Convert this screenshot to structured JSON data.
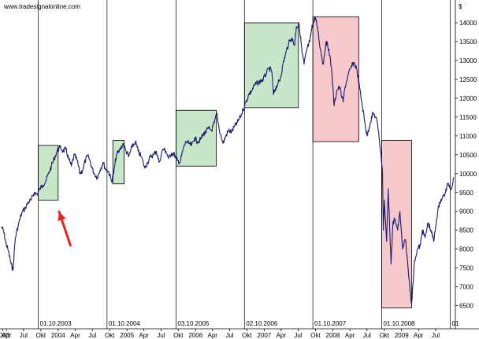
{
  "source_label": "www.tradesignalonline.com",
  "chart_data": {
    "type": "line",
    "title": "",
    "xlabel": "",
    "ylabel": "",
    "y_unit_label": "$",
    "ylim": [
      6200,
      14250
    ],
    "xlim": [
      "2003-03-20",
      "2009-10-28"
    ],
    "y_ticks": [
      6500,
      7000,
      7500,
      8000,
      8500,
      9000,
      9500,
      10000,
      10500,
      11000,
      11500,
      12000,
      12500,
      13000,
      13500,
      14000
    ],
    "x_ticks": [
      {
        "date": "2003-03-25",
        "label": "2003"
      },
      {
        "date": "2003-04-15",
        "label": "Apr"
      },
      {
        "date": "2003-07-15",
        "label": "Jul"
      },
      {
        "date": "2003-10-15",
        "label": "Okt"
      },
      {
        "date": "2004-01-15",
        "label": "2004"
      },
      {
        "date": "2004-04-15",
        "label": "Apr"
      },
      {
        "date": "2004-07-15",
        "label": "Jul"
      },
      {
        "date": "2004-10-15",
        "label": "Okt"
      },
      {
        "date": "2005-01-15",
        "label": "2005"
      },
      {
        "date": "2005-04-15",
        "label": "Apr"
      },
      {
        "date": "2005-07-15",
        "label": "Jul"
      },
      {
        "date": "2005-10-15",
        "label": "Okt"
      },
      {
        "date": "2006-01-15",
        "label": "2006"
      },
      {
        "date": "2006-04-15",
        "label": "Apr"
      },
      {
        "date": "2006-07-15",
        "label": "Jul"
      },
      {
        "date": "2006-10-15",
        "label": "Okt"
      },
      {
        "date": "2007-01-15",
        "label": "2007"
      },
      {
        "date": "2007-04-15",
        "label": "Apr"
      },
      {
        "date": "2007-07-15",
        "label": "Jul"
      },
      {
        "date": "2007-10-15",
        "label": "Okt"
      },
      {
        "date": "2008-01-15",
        "label": "2008"
      },
      {
        "date": "2008-04-15",
        "label": "Apr"
      },
      {
        "date": "2008-07-15",
        "label": "Jul"
      },
      {
        "date": "2008-10-15",
        "label": "Okt"
      },
      {
        "date": "2009-01-15",
        "label": "2009"
      },
      {
        "date": "2009-04-15",
        "label": "Apr"
      },
      {
        "date": "2009-07-15",
        "label": "Jul"
      }
    ],
    "vertical_markers": [
      {
        "date": "2003-10-01",
        "label": "01.10.2003"
      },
      {
        "date": "2004-10-01",
        "label": "01.10.2004"
      },
      {
        "date": "2005-10-03",
        "label": "03.10.2005"
      },
      {
        "date": "2006-10-02",
        "label": "02.10.2006"
      },
      {
        "date": "2007-10-01",
        "label": "01.10.2007"
      },
      {
        "date": "2008-10-01",
        "label": "01.10.2008"
      },
      {
        "date": "2009-10-01",
        "label": "01"
      }
    ],
    "highlight_boxes": [
      {
        "start": "2003-10-01",
        "end": "2004-01-15",
        "low": 9300,
        "high": 10750,
        "kind": "gain",
        "color": "#c8e6c8"
      },
      {
        "start": "2004-11-01",
        "end": "2004-12-31",
        "low": 9730,
        "high": 10880,
        "kind": "gain",
        "color": "#c8e6c8"
      },
      {
        "start": "2005-10-03",
        "end": "2006-05-05",
        "low": 10200,
        "high": 11680,
        "kind": "gain",
        "color": "#c8e6c8"
      },
      {
        "start": "2006-10-02",
        "end": "2007-07-16",
        "low": 11750,
        "high": 14000,
        "kind": "gain",
        "color": "#c8e6c8"
      },
      {
        "start": "2007-10-01",
        "end": "2008-06-01",
        "low": 10850,
        "high": 14160,
        "kind": "loss",
        "color": "#f7c8cc"
      },
      {
        "start": "2008-10-01",
        "end": "2009-03-09",
        "low": 6440,
        "high": 10880,
        "kind": "loss",
        "color": "#f7c8cc"
      }
    ],
    "annotation": {
      "type": "arrow",
      "color": "#e8231f",
      "from": {
        "date": "2004-03-20",
        "value": 8100
      },
      "to": {
        "date": "2004-01-20",
        "value": 8990
      }
    },
    "grid": false,
    "series": [
      {
        "color": "#1a1a6e",
        "points": [
          [
            "2003-03-20",
            8600
          ],
          [
            "2003-04-01",
            8450
          ],
          [
            "2003-04-10",
            8200
          ],
          [
            "2003-04-25",
            7950
          ],
          [
            "2003-05-10",
            7600
          ],
          [
            "2003-05-20",
            7450
          ],
          [
            "2003-06-01",
            8300
          ],
          [
            "2003-06-20",
            8700
          ],
          [
            "2003-07-05",
            8950
          ],
          [
            "2003-07-25",
            9100
          ],
          [
            "2003-08-10",
            9250
          ],
          [
            "2003-08-25",
            9300
          ],
          [
            "2003-09-10",
            9500
          ],
          [
            "2003-09-25",
            9450
          ],
          [
            "2003-10-10",
            9600
          ],
          [
            "2003-10-25",
            9700
          ],
          [
            "2003-11-10",
            9800
          ],
          [
            "2003-11-25",
            10000
          ],
          [
            "2003-12-10",
            10200
          ],
          [
            "2003-12-25",
            10400
          ],
          [
            "2004-01-10",
            10600
          ],
          [
            "2004-01-25",
            10700
          ],
          [
            "2004-02-10",
            10600
          ],
          [
            "2004-02-25",
            10650
          ],
          [
            "2004-03-10",
            10400
          ],
          [
            "2004-03-25",
            10200
          ],
          [
            "2004-04-10",
            10500
          ],
          [
            "2004-04-25",
            10350
          ],
          [
            "2004-05-10",
            10000
          ],
          [
            "2004-05-25",
            10100
          ],
          [
            "2004-06-10",
            10400
          ],
          [
            "2004-06-25",
            10450
          ],
          [
            "2004-07-10",
            10200
          ],
          [
            "2004-07-25",
            10000
          ],
          [
            "2004-08-10",
            9900
          ],
          [
            "2004-08-25",
            10100
          ],
          [
            "2004-09-10",
            10300
          ],
          [
            "2004-09-25",
            10100
          ],
          [
            "2004-10-10",
            10050
          ],
          [
            "2004-10-25",
            9800
          ],
          [
            "2004-11-05",
            10000
          ],
          [
            "2004-11-20",
            10500
          ],
          [
            "2004-12-05",
            10600
          ],
          [
            "2004-12-25",
            10800
          ],
          [
            "2005-01-10",
            10600
          ],
          [
            "2005-01-25",
            10450
          ],
          [
            "2005-02-10",
            10700
          ],
          [
            "2005-03-01",
            10850
          ],
          [
            "2005-03-15",
            10600
          ],
          [
            "2005-04-01",
            10450
          ],
          [
            "2005-04-20",
            10150
          ],
          [
            "2005-05-05",
            10300
          ],
          [
            "2005-05-20",
            10450
          ],
          [
            "2005-06-05",
            10500
          ],
          [
            "2005-06-20",
            10600
          ],
          [
            "2005-07-05",
            10300
          ],
          [
            "2005-07-25",
            10650
          ],
          [
            "2005-08-10",
            10600
          ],
          [
            "2005-08-25",
            10400
          ],
          [
            "2005-09-10",
            10550
          ],
          [
            "2005-09-25",
            10500
          ],
          [
            "2005-10-10",
            10350
          ],
          [
            "2005-10-25",
            10300
          ],
          [
            "2005-11-10",
            10650
          ],
          [
            "2005-11-25",
            10850
          ],
          [
            "2005-12-10",
            10800
          ],
          [
            "2005-12-25",
            10750
          ],
          [
            "2006-01-10",
            10950
          ],
          [
            "2006-01-25",
            10850
          ],
          [
            "2006-02-10",
            10900
          ],
          [
            "2006-02-25",
            11050
          ],
          [
            "2006-03-10",
            11100
          ],
          [
            "2006-03-25",
            11200
          ],
          [
            "2006-04-10",
            11150
          ],
          [
            "2006-04-25",
            11350
          ],
          [
            "2006-05-08",
            11600
          ],
          [
            "2006-05-20",
            11200
          ],
          [
            "2006-06-10",
            10800
          ],
          [
            "2006-06-25",
            11000
          ],
          [
            "2006-07-10",
            11150
          ],
          [
            "2006-07-25",
            11100
          ],
          [
            "2006-08-10",
            11250
          ],
          [
            "2006-08-25",
            11350
          ],
          [
            "2006-09-10",
            11500
          ],
          [
            "2006-09-25",
            11700
          ],
          [
            "2006-10-10",
            11900
          ],
          [
            "2006-10-25",
            12100
          ],
          [
            "2006-11-10",
            12200
          ],
          [
            "2006-11-25",
            12350
          ],
          [
            "2006-12-10",
            12400
          ],
          [
            "2006-12-25",
            12450
          ],
          [
            "2007-01-10",
            12500
          ],
          [
            "2007-01-25",
            12650
          ],
          [
            "2007-02-10",
            12800
          ],
          [
            "2007-02-25",
            12700
          ],
          [
            "2007-03-05",
            12100
          ],
          [
            "2007-03-15",
            12250
          ],
          [
            "2007-03-30",
            12400
          ],
          [
            "2007-04-10",
            12500
          ],
          [
            "2007-04-25",
            12900
          ],
          [
            "2007-05-10",
            13200
          ],
          [
            "2007-05-25",
            13450
          ],
          [
            "2007-06-10",
            13600
          ],
          [
            "2007-06-25",
            13400
          ],
          [
            "2007-07-05",
            13900
          ],
          [
            "2007-07-20",
            13950
          ],
          [
            "2007-08-05",
            13200
          ],
          [
            "2007-08-15",
            12900
          ],
          [
            "2007-08-30",
            13300
          ],
          [
            "2007-09-15",
            13500
          ],
          [
            "2007-09-25",
            13850
          ],
          [
            "2007-10-05",
            14000
          ],
          [
            "2007-10-12",
            14150
          ],
          [
            "2007-10-25",
            13900
          ],
          [
            "2007-11-10",
            13300
          ],
          [
            "2007-11-25",
            12900
          ],
          [
            "2007-12-10",
            13500
          ],
          [
            "2007-12-25",
            13300
          ],
          [
            "2008-01-10",
            12700
          ],
          [
            "2008-01-22",
            11800
          ],
          [
            "2008-02-05",
            12200
          ],
          [
            "2008-02-20",
            12300
          ],
          [
            "2008-03-10",
            11900
          ],
          [
            "2008-03-20",
            12300
          ],
          [
            "2008-04-05",
            12600
          ],
          [
            "2008-04-20",
            12800
          ],
          [
            "2008-05-05",
            12950
          ],
          [
            "2008-05-20",
            12800
          ],
          [
            "2008-06-05",
            12300
          ],
          [
            "2008-06-20",
            11800
          ],
          [
            "2008-07-05",
            11300
          ],
          [
            "2008-07-15",
            11000
          ],
          [
            "2008-08-01",
            11350
          ],
          [
            "2008-08-15",
            11600
          ],
          [
            "2008-09-01",
            11500
          ],
          [
            "2008-09-15",
            11100
          ],
          [
            "2008-09-29",
            10400
          ],
          [
            "2008-10-05",
            10100
          ],
          [
            "2008-10-10",
            8500
          ],
          [
            "2008-10-15",
            9300
          ],
          [
            "2008-10-27",
            8200
          ],
          [
            "2008-11-05",
            9600
          ],
          [
            "2008-11-20",
            7600
          ],
          [
            "2008-11-30",
            8700
          ],
          [
            "2008-12-10",
            8800
          ],
          [
            "2008-12-25",
            8500
          ],
          [
            "2009-01-06",
            9000
          ],
          [
            "2009-01-20",
            8000
          ],
          [
            "2009-02-05",
            8250
          ],
          [
            "2009-02-20",
            7400
          ],
          [
            "2009-03-09",
            6550
          ],
          [
            "2009-03-25",
            7700
          ],
          [
            "2009-04-10",
            8000
          ],
          [
            "2009-04-25",
            8100
          ],
          [
            "2009-05-05",
            8500
          ],
          [
            "2009-05-20",
            8300
          ],
          [
            "2009-06-05",
            8700
          ],
          [
            "2009-06-20",
            8500
          ],
          [
            "2009-07-05",
            8200
          ],
          [
            "2009-07-20",
            8800
          ],
          [
            "2009-08-05",
            9250
          ],
          [
            "2009-08-20",
            9350
          ],
          [
            "2009-09-05",
            9500
          ],
          [
            "2009-09-20",
            9750
          ],
          [
            "2009-10-05",
            9600
          ],
          [
            "2009-10-20",
            9900
          ]
        ]
      }
    ]
  }
}
